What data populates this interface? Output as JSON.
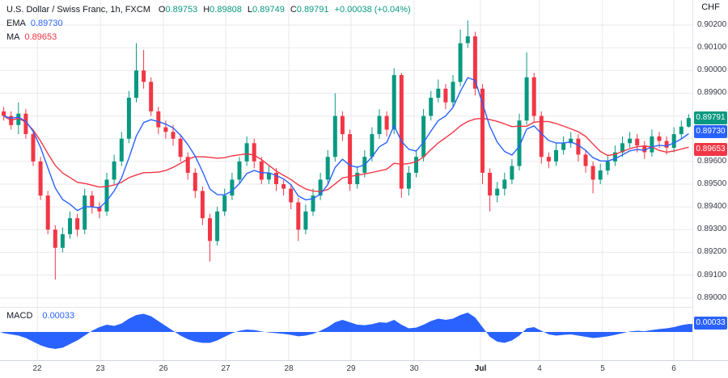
{
  "header": {
    "symbol_title": "U.S. Dollar / Swiss Franc, 1h, FXCM",
    "ohlc": [
      {
        "label": "O",
        "value": "0.89753"
      },
      {
        "label": "H",
        "value": "0.89808"
      },
      {
        "label": "L",
        "value": "0.89749"
      },
      {
        "label": "C",
        "value": "0.89791"
      }
    ],
    "change": "+0.00038 (+0.04%)",
    "currency_label": "CHF"
  },
  "indicators": {
    "ema": {
      "label": "EMA",
      "value": "0.89730"
    },
    "ma": {
      "label": "MA",
      "value": "0.89653"
    },
    "macd": {
      "label": "MACD",
      "value": "0.00033"
    }
  },
  "colors": {
    "up": "#089981",
    "down": "#f23645",
    "ema": "#2962ff",
    "ma": "#f23645",
    "macd": "#2962ff",
    "grid": "#e8eaed",
    "axis_text": "#363a45",
    "title_text": "#131722"
  },
  "price_axis": {
    "labels": [
      {
        "text": "0.90200",
        "price": 0.902
      },
      {
        "text": "0.90100",
        "price": 0.901
      },
      {
        "text": "0.90000",
        "price": 0.9
      },
      {
        "text": "0.89900",
        "price": 0.899
      },
      {
        "text": "0.89600",
        "price": 0.896
      },
      {
        "text": "0.89500",
        "price": 0.895
      },
      {
        "text": "0.89400",
        "price": 0.894
      },
      {
        "text": "0.89300",
        "price": 0.893
      },
      {
        "text": "0.89200",
        "price": 0.892
      },
      {
        "text": "0.89100",
        "price": 0.891
      },
      {
        "text": "0.89000",
        "price": 0.89
      }
    ],
    "badges": [
      {
        "text": "0.89791",
        "price": 0.89791,
        "color": "#089981",
        "name": "last-price-badge"
      },
      {
        "text": "0.89730",
        "price": 0.8973,
        "color": "#2962ff",
        "name": "ema-price-badge"
      },
      {
        "text": "0.89653",
        "price": 0.89653,
        "color": "#f23645",
        "name": "ma-price-badge"
      }
    ],
    "macd_badge": {
      "text": "0.00033",
      "value": 0.00033,
      "color": "#2962ff"
    }
  },
  "chart_data": {
    "type": "candlestick",
    "title": "U.S. Dollar / Swiss Franc, 1h, FXCM",
    "symbol": "USD/CHF",
    "interval": "1h",
    "exchange": "FXCM",
    "ylim": [
      0.8896,
      0.9031
    ],
    "price_grid_step": 0.001,
    "x_labels": [
      {
        "text": "22",
        "pos": 0.054
      },
      {
        "text": "23",
        "pos": 0.145
      },
      {
        "text": "26",
        "pos": 0.236
      },
      {
        "text": "27",
        "pos": 0.326
      },
      {
        "text": "28",
        "pos": 0.417
      },
      {
        "text": "29",
        "pos": 0.507
      },
      {
        "text": "30",
        "pos": 0.598
      },
      {
        "text": "Jul",
        "pos": 0.694,
        "emphasis": true
      },
      {
        "text": "4",
        "pos": 0.779
      },
      {
        "text": "5",
        "pos": 0.87
      },
      {
        "text": "6",
        "pos": 0.973
      }
    ],
    "overlays": [
      {
        "name": "EMA",
        "period": 7,
        "color": "#2962ff",
        "last_value": 0.8973
      },
      {
        "name": "MA",
        "period": 18,
        "color": "#f23645",
        "last_value": 0.89653
      }
    ],
    "candles": [
      [
        0.8982,
        0.8984,
        0.8978,
        0.898
      ],
      [
        0.898,
        0.8982,
        0.8974,
        0.8976
      ],
      [
        0.8976,
        0.8986,
        0.8972,
        0.8981
      ],
      [
        0.8981,
        0.8983,
        0.897,
        0.8972
      ],
      [
        0.8972,
        0.8974,
        0.8958,
        0.896
      ],
      [
        0.896,
        0.8962,
        0.8943,
        0.8945
      ],
      [
        0.8945,
        0.8947,
        0.8928,
        0.893
      ],
      [
        0.893,
        0.8932,
        0.8908,
        0.8922
      ],
      [
        0.8922,
        0.8931,
        0.892,
        0.8928
      ],
      [
        0.8928,
        0.8938,
        0.8926,
        0.8935
      ],
      [
        0.8935,
        0.8937,
        0.8927,
        0.893
      ],
      [
        0.893,
        0.8948,
        0.8928,
        0.8945
      ],
      [
        0.8945,
        0.8947,
        0.8937,
        0.894
      ],
      [
        0.894,
        0.8942,
        0.8935,
        0.8938
      ],
      [
        0.8938,
        0.8955,
        0.8936,
        0.8952
      ],
      [
        0.8952,
        0.8963,
        0.895,
        0.896
      ],
      [
        0.896,
        0.8973,
        0.8958,
        0.897
      ],
      [
        0.897,
        0.8991,
        0.8968,
        0.8988
      ],
      [
        0.8988,
        0.9012,
        0.8986,
        0.9
      ],
      [
        0.9,
        0.9009,
        0.8992,
        0.8995
      ],
      [
        0.8995,
        0.8997,
        0.898,
        0.8982
      ],
      [
        0.8982,
        0.8984,
        0.8972,
        0.8975
      ],
      [
        0.8975,
        0.8978,
        0.897,
        0.8973
      ],
      [
        0.8973,
        0.8976,
        0.8967,
        0.897
      ],
      [
        0.897,
        0.8972,
        0.896,
        0.8962
      ],
      [
        0.8962,
        0.8964,
        0.8952,
        0.8955
      ],
      [
        0.8955,
        0.8957,
        0.8944,
        0.8947
      ],
      [
        0.8947,
        0.8949,
        0.8932,
        0.8935
      ],
      [
        0.8935,
        0.8937,
        0.8916,
        0.8925
      ],
      [
        0.8925,
        0.894,
        0.8923,
        0.8938
      ],
      [
        0.8938,
        0.8948,
        0.8936,
        0.8945
      ],
      [
        0.8945,
        0.8955,
        0.8943,
        0.8952
      ],
      [
        0.8952,
        0.8962,
        0.895,
        0.896
      ],
      [
        0.896,
        0.8971,
        0.8958,
        0.8968
      ],
      [
        0.8968,
        0.897,
        0.8957,
        0.896
      ],
      [
        0.896,
        0.8962,
        0.895,
        0.8952
      ],
      [
        0.8952,
        0.8958,
        0.895,
        0.8955
      ],
      [
        0.8955,
        0.8957,
        0.8947,
        0.895
      ],
      [
        0.895,
        0.8952,
        0.8945,
        0.8948
      ],
      [
        0.8948,
        0.895,
        0.8939,
        0.8942
      ],
      [
        0.8942,
        0.8944,
        0.8925,
        0.893
      ],
      [
        0.893,
        0.8941,
        0.8928,
        0.8938
      ],
      [
        0.8938,
        0.8948,
        0.8936,
        0.8945
      ],
      [
        0.8945,
        0.8955,
        0.8943,
        0.8952
      ],
      [
        0.8952,
        0.8965,
        0.895,
        0.8962
      ],
      [
        0.8962,
        0.899,
        0.896,
        0.898
      ],
      [
        0.898,
        0.8982,
        0.8969,
        0.8972
      ],
      [
        0.8972,
        0.8974,
        0.8947,
        0.895
      ],
      [
        0.895,
        0.8958,
        0.8948,
        0.8955
      ],
      [
        0.8955,
        0.8965,
        0.8953,
        0.8962
      ],
      [
        0.8962,
        0.8975,
        0.896,
        0.8972
      ],
      [
        0.8972,
        0.8983,
        0.897,
        0.898
      ],
      [
        0.898,
        0.8982,
        0.8971,
        0.8974
      ],
      [
        0.8974,
        0.9001,
        0.8972,
        0.8998
      ],
      [
        0.8998,
        0.8999,
        0.8944,
        0.8948
      ],
      [
        0.8948,
        0.8958,
        0.8945,
        0.8955
      ],
      [
        0.8955,
        0.8965,
        0.8953,
        0.8962
      ],
      [
        0.8962,
        0.8983,
        0.896,
        0.898
      ],
      [
        0.898,
        0.8991,
        0.8978,
        0.8988
      ],
      [
        0.8988,
        0.8996,
        0.8986,
        0.8992
      ],
      [
        0.8992,
        0.8994,
        0.8983,
        0.8986
      ],
      [
        0.8986,
        0.8998,
        0.8984,
        0.8995
      ],
      [
        0.8995,
        0.9018,
        0.8993,
        0.9012
      ],
      [
        0.9012,
        0.9022,
        0.901,
        0.9015
      ],
      [
        0.9015,
        0.9017,
        0.8989,
        0.8992
      ],
      [
        0.8992,
        0.8994,
        0.895,
        0.8955
      ],
      [
        0.8955,
        0.8957,
        0.8938,
        0.8945
      ],
      [
        0.8945,
        0.8951,
        0.8942,
        0.8948
      ],
      [
        0.8948,
        0.8955,
        0.8945,
        0.8952
      ],
      [
        0.8952,
        0.8961,
        0.895,
        0.8958
      ],
      [
        0.8958,
        0.8981,
        0.8956,
        0.8978
      ],
      [
        0.8978,
        0.9008,
        0.8976,
        0.8997
      ],
      [
        0.8997,
        0.8999,
        0.8977,
        0.898
      ],
      [
        0.898,
        0.8982,
        0.8959,
        0.8962
      ],
      [
        0.8962,
        0.8964,
        0.8957,
        0.896
      ],
      [
        0.896,
        0.8968,
        0.8958,
        0.8965
      ],
      [
        0.8965,
        0.8971,
        0.8963,
        0.8968
      ],
      [
        0.8968,
        0.8973,
        0.8966,
        0.897
      ],
      [
        0.897,
        0.8972,
        0.896,
        0.8963
      ],
      [
        0.8963,
        0.8965,
        0.8955,
        0.8958
      ],
      [
        0.8958,
        0.896,
        0.8946,
        0.8952
      ],
      [
        0.8952,
        0.8959,
        0.895,
        0.8956
      ],
      [
        0.8956,
        0.8963,
        0.8954,
        0.896
      ],
      [
        0.896,
        0.8967,
        0.8958,
        0.8964
      ],
      [
        0.8964,
        0.8971,
        0.8962,
        0.8968
      ],
      [
        0.8968,
        0.8973,
        0.8966,
        0.897
      ],
      [
        0.897,
        0.8972,
        0.8964,
        0.8967
      ],
      [
        0.8967,
        0.8969,
        0.8961,
        0.8964
      ],
      [
        0.8964,
        0.8974,
        0.8962,
        0.8971
      ],
      [
        0.8971,
        0.8973,
        0.8966,
        0.8969
      ],
      [
        0.8969,
        0.8971,
        0.8963,
        0.8966
      ],
      [
        0.8966,
        0.8975,
        0.8964,
        0.8972
      ],
      [
        0.8972,
        0.8978,
        0.897,
        0.89753
      ],
      [
        0.89753,
        0.89808,
        0.89749,
        0.89791
      ]
    ],
    "macd": {
      "type": "area",
      "color": "#2962ff",
      "last_value": 0.00033,
      "values": [
        -5e-05,
        -0.0001,
        -0.00015,
        -0.00025,
        -0.0004,
        -0.00055,
        -0.00065,
        -0.0007,
        -0.00065,
        -0.0005,
        -0.00035,
        -0.00015,
        5e-05,
        0.0002,
        0.0003,
        0.00025,
        0.00035,
        0.00055,
        0.0007,
        0.00075,
        0.00065,
        0.00045,
        0.00025,
        5e-05,
        -0.00015,
        -0.0003,
        -0.0004,
        -0.00045,
        -0.00045,
        -0.00035,
        -0.0002,
        -5e-05,
        5e-05,
        0.0001,
        8e-05,
        2e-05,
        -2e-05,
        -5e-05,
        -8e-05,
        -0.00012,
        -0.00018,
        -0.00015,
        -8e-05,
        5e-05,
        0.0002,
        0.0004,
        0.0005,
        0.0004,
        0.0003,
        0.00028,
        0.00032,
        0.0004,
        0.00038,
        0.0005,
        0.0003,
        0.00015,
        0.00018,
        0.0003,
        0.00045,
        0.00055,
        0.0005,
        0.00055,
        0.0007,
        0.0008,
        0.0006,
        0.0002,
        -0.0002,
        -0.0004,
        -0.00045,
        -0.00035,
        -0.00015,
        0.00015,
        0.0002,
        5e-05,
        -0.0001,
        -0.00015,
        -0.00012,
        -0.0001,
        -0.00015,
        -0.0002,
        -0.00025,
        -0.00022,
        -0.00018,
        -0.00012,
        -5e-05,
        2e-05,
        5e-05,
        3e-05,
        8e-05,
        0.00012,
        0.00015,
        0.0002,
        0.00028,
        0.00033
      ]
    }
  }
}
